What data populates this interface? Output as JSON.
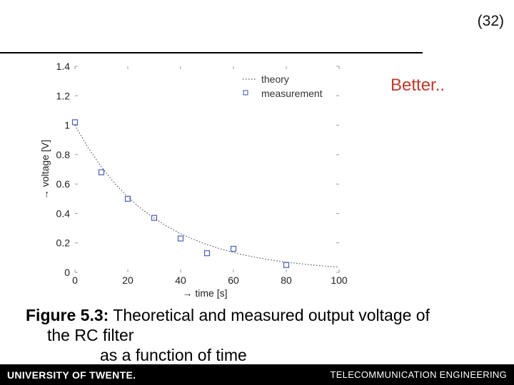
{
  "slide": {
    "page_number": "(32)",
    "note": "Better..",
    "caption_label": "Figure 5.3:",
    "caption_text_1": "Theoretical and measured output voltage of",
    "caption_text_2": "the RC filter",
    "caption_text_3": "as a function of time"
  },
  "footer": {
    "left": "UNIVERSITY OF TWENTE.",
    "right": "TELECOMMUNICATION ENGINEERING"
  },
  "colors": {
    "note": "#c0392b",
    "marker": "#4a5db8",
    "footer_bg": "#000000"
  },
  "chart_data": {
    "type": "scatter",
    "title": "",
    "xlabel": "→ time [s]",
    "ylabel": "→ voltage [V]",
    "xlim": [
      0,
      100
    ],
    "ylim": [
      0,
      1.4
    ],
    "x_ticks": [
      0,
      20,
      40,
      60,
      80,
      100
    ],
    "y_ticks": [
      0,
      0.2,
      0.4,
      0.6,
      0.8,
      1,
      1.2,
      1.4
    ],
    "y_tick_labels": [
      "0",
      "0.2",
      "0.4",
      "0.6",
      "0.8",
      "1",
      "1.2",
      "1.4"
    ],
    "x_tick_labels": [
      "0",
      "20",
      "40",
      "60",
      "80",
      "100"
    ],
    "legend_position": "top-right",
    "series": [
      {
        "name": "theory",
        "kind": "line",
        "style": "dotted",
        "x": [
          0,
          5,
          10,
          15,
          20,
          25,
          30,
          35,
          40,
          45,
          50,
          55,
          60,
          65,
          70,
          75,
          80,
          85,
          90,
          95,
          100
        ],
        "y": [
          1.0,
          0.846,
          0.716,
          0.606,
          0.513,
          0.434,
          0.368,
          0.311,
          0.263,
          0.223,
          0.189,
          0.16,
          0.135,
          0.114,
          0.097,
          0.082,
          0.069,
          0.059,
          0.05,
          0.042,
          0.035
        ]
      },
      {
        "name": "measurement",
        "kind": "markers",
        "x": [
          0,
          10,
          20,
          30,
          40,
          50,
          60,
          80
        ],
        "y": [
          1.02,
          0.68,
          0.5,
          0.37,
          0.23,
          0.13,
          0.16,
          0.05
        ]
      }
    ]
  }
}
